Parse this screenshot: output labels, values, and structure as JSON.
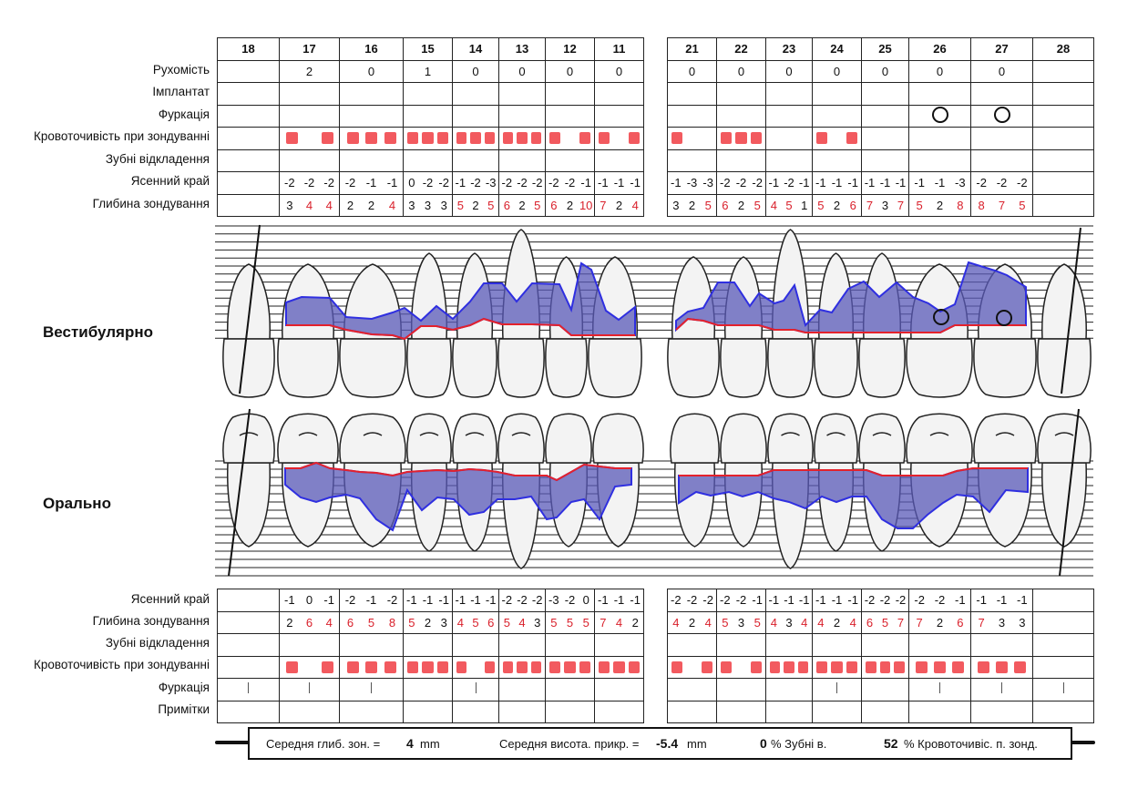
{
  "upper": {
    "left_teeth": [
      "18",
      "17",
      "16",
      "15",
      "14",
      "13",
      "12",
      "11"
    ],
    "right_teeth": [
      "21",
      "22",
      "23",
      "24",
      "25",
      "26",
      "27",
      "28"
    ],
    "rows": [
      {
        "label": "Рухомість"
      },
      {
        "label": "Імплантат"
      },
      {
        "label": "Фуркація"
      },
      {
        "label": "Кровоточивість при зондуванні"
      },
      {
        "label": "Зубні відкладення"
      },
      {
        "label": "Ясенний край"
      },
      {
        "label": "Глибина зондування"
      }
    ],
    "mobility": {
      "left": [
        "",
        "2",
        "0",
        "1",
        "0",
        "0",
        "0",
        "0"
      ],
      "right": [
        "0",
        "0",
        "0",
        "0",
        "0",
        "0",
        "0",
        ""
      ]
    },
    "furcation_rings": {
      "left": [
        0,
        0,
        0,
        0,
        0,
        0,
        0,
        0
      ],
      "right": [
        0,
        0,
        0,
        0,
        0,
        1,
        1,
        0
      ]
    },
    "bleeding": {
      "left": [
        [
          0,
          0,
          0
        ],
        [
          1,
          0,
          1
        ],
        [
          1,
          1,
          1
        ],
        [
          1,
          1,
          1
        ],
        [
          1,
          1,
          1
        ],
        [
          1,
          1,
          1
        ],
        [
          1,
          0,
          1
        ],
        [
          1,
          0,
          1
        ]
      ],
      "right": [
        [
          1,
          0,
          0
        ],
        [
          1,
          1,
          1
        ],
        [
          0,
          0,
          0
        ],
        [
          1,
          0,
          1
        ],
        [
          0,
          0,
          0
        ],
        [
          0,
          0,
          0
        ],
        [
          0,
          0,
          0
        ],
        [
          0,
          0,
          0
        ]
      ]
    },
    "gingival_margin": {
      "left": [
        [
          "",
          "",
          ""
        ],
        [
          "-2",
          "-2",
          "-2"
        ],
        [
          "-2",
          "-1",
          "-1"
        ],
        [
          "0",
          "-2",
          "-2"
        ],
        [
          "-1",
          "-2",
          "-3"
        ],
        [
          "-2",
          "-2",
          "-2"
        ],
        [
          "-2",
          "-2",
          "-1"
        ],
        [
          "-1",
          "-1",
          "-1"
        ]
      ],
      "right": [
        [
          "-1",
          "-3",
          "-3"
        ],
        [
          "-2",
          "-2",
          "-2"
        ],
        [
          "-1",
          "-2",
          "-1"
        ],
        [
          "-1",
          "-1",
          "-1"
        ],
        [
          "-1",
          "-1",
          "-1"
        ],
        [
          "-1",
          "-1",
          "-3"
        ],
        [
          "-2",
          "-2",
          "-2"
        ],
        [
          "",
          "",
          ""
        ]
      ]
    },
    "probing_depth": {
      "left": [
        [
          "",
          "",
          ""
        ],
        [
          "3",
          "4",
          "4"
        ],
        [
          "2",
          "2",
          "4"
        ],
        [
          "3",
          "3",
          "3"
        ],
        [
          "5",
          "2",
          "5"
        ],
        [
          "6",
          "2",
          "5"
        ],
        [
          "6",
          "2",
          "10"
        ],
        [
          "7",
          "2",
          "4"
        ]
      ],
      "right": [
        [
          "3",
          "2",
          "5"
        ],
        [
          "6",
          "2",
          "5"
        ],
        [
          "4",
          "5",
          "1"
        ],
        [
          "5",
          "2",
          "6"
        ],
        [
          "7",
          "3",
          "7"
        ],
        [
          "5",
          "2",
          "8"
        ],
        [
          "8",
          "7",
          "5"
        ],
        [
          "",
          "",
          ""
        ]
      ]
    }
  },
  "diagram": {
    "vestibular_label": "Вестибулярно",
    "oral_label": "Орально"
  },
  "lower": {
    "rows": [
      {
        "label": "Ясенний край"
      },
      {
        "label": "Глибина зондування"
      },
      {
        "label": "Зубні відкладення"
      },
      {
        "label": "Кровоточивість при зондуванні"
      },
      {
        "label": "Фуркація"
      },
      {
        "label": "Примітки"
      }
    ],
    "gingival_margin": {
      "left": [
        [
          "",
          "",
          ""
        ],
        [
          "-1",
          "0",
          "-1"
        ],
        [
          "-2",
          "-1",
          "-2"
        ],
        [
          "-1",
          "-1",
          "-1"
        ],
        [
          "-1",
          "-1",
          "-1"
        ],
        [
          "-2",
          "-2",
          "-2"
        ],
        [
          "-3",
          "-2",
          "0"
        ],
        [
          "-1",
          "-1",
          "-1"
        ]
      ],
      "right": [
        [
          "-2",
          "-2",
          "-2"
        ],
        [
          "-2",
          "-2",
          "-1"
        ],
        [
          "-1",
          "-1",
          "-1"
        ],
        [
          "-1",
          "-1",
          "-1"
        ],
        [
          "-2",
          "-2",
          "-2"
        ],
        [
          "-2",
          "-2",
          "-1"
        ],
        [
          "-1",
          "-1",
          "-1"
        ],
        [
          "",
          "",
          ""
        ]
      ]
    },
    "probing_depth": {
      "left": [
        [
          "",
          "",
          ""
        ],
        [
          "2",
          "6",
          "4"
        ],
        [
          "6",
          "5",
          "8"
        ],
        [
          "5",
          "2",
          "3"
        ],
        [
          "4",
          "5",
          "6"
        ],
        [
          "5",
          "4",
          "3"
        ],
        [
          "5",
          "5",
          "5"
        ],
        [
          "7",
          "4",
          "2"
        ]
      ],
      "right": [
        [
          "4",
          "2",
          "4"
        ],
        [
          "5",
          "3",
          "5"
        ],
        [
          "4",
          "3",
          "4"
        ],
        [
          "4",
          "2",
          "4"
        ],
        [
          "6",
          "5",
          "7"
        ],
        [
          "7",
          "2",
          "6"
        ],
        [
          "7",
          "3",
          "3"
        ],
        [
          "",
          "",
          ""
        ]
      ]
    },
    "bleeding": {
      "left": [
        [
          0,
          0,
          0
        ],
        [
          1,
          0,
          1
        ],
        [
          1,
          1,
          1
        ],
        [
          1,
          1,
          1
        ],
        [
          1,
          0,
          1
        ],
        [
          1,
          1,
          1
        ],
        [
          1,
          1,
          1
        ],
        [
          1,
          1,
          1
        ]
      ],
      "right": [
        [
          1,
          0,
          1
        ],
        [
          1,
          0,
          1
        ],
        [
          1,
          1,
          1
        ],
        [
          1,
          1,
          1
        ],
        [
          1,
          1,
          1
        ],
        [
          1,
          1,
          1
        ],
        [
          1,
          1,
          1
        ],
        [
          0,
          0,
          0
        ]
      ]
    },
    "furcation_ticks": {
      "left": [
        1,
        1,
        1,
        0,
        1,
        0,
        0,
        0
      ],
      "right": [
        0,
        0,
        0,
        1,
        0,
        1,
        1,
        1
      ]
    }
  },
  "summary": {
    "avg_depth_label": "Середня глиб. зон. =",
    "avg_depth_value": "4",
    "avg_depth_unit": "mm",
    "avg_attach_label": "Середня висота. прикр. =",
    "avg_attach_value": "-5.4",
    "avg_attach_unit": "mm",
    "plaque_value": "0",
    "plaque_label": "% Зубні в.",
    "bleeding_value": "52",
    "bleeding_label": "% Кровоточивіс. п. зонд."
  },
  "colors": {
    "bleeding": "#f25a5f",
    "deep_value": "#d9202b",
    "pocket_fill": "#5a5ab8",
    "pocket_line": "#2f2fe0",
    "gum_line": "#e4222c"
  }
}
